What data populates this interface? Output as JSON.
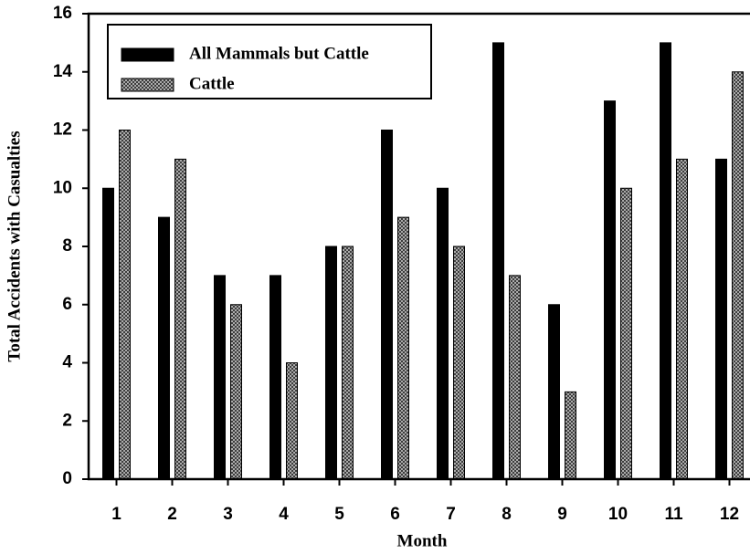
{
  "chart_data": {
    "type": "bar",
    "x_label": "Month",
    "y_label": "Total Accidents with Casualties",
    "categories": [
      "1",
      "2",
      "3",
      "4",
      "5",
      "6",
      "7",
      "8",
      "9",
      "10",
      "11",
      "12"
    ],
    "series": [
      {
        "name": "All Mammals but Cattle",
        "color": "#000000",
        "values": [
          10,
          9,
          7,
          7,
          8,
          12,
          10,
          15,
          6,
          13,
          15,
          11
        ]
      },
      {
        "name": "Cattle",
        "color": "#c8c8c8",
        "pattern": "crosshatch",
        "values": [
          12,
          11,
          6,
          4,
          8,
          9,
          8,
          7,
          3,
          10,
          11,
          14
        ]
      }
    ],
    "ylim": [
      0,
      16
    ],
    "yticks": [
      0,
      2,
      4,
      6,
      8,
      10,
      12,
      14,
      16
    ],
    "legend": "upper left"
  }
}
